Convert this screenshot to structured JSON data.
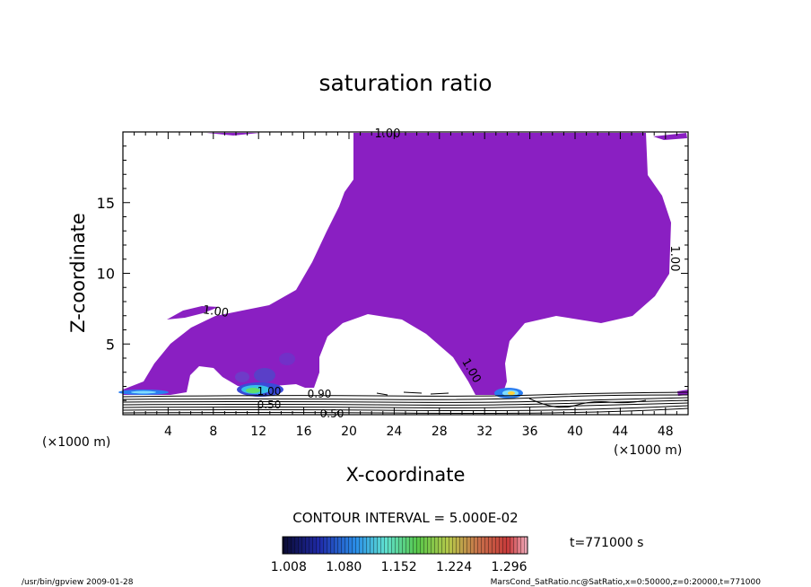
{
  "chart_data": {
    "type": "contour",
    "title": "saturation ratio",
    "xlabel": "X-coordinate",
    "ylabel": "Z-coordinate",
    "x_unit_left": "(×1000 m)",
    "x_unit_right": "(×1000 m)",
    "xlim": [
      0,
      50
    ],
    "ylim": [
      0,
      20
    ],
    "x_ticks": [
      "4",
      "8",
      "12",
      "16",
      "20",
      "24",
      "28",
      "32",
      "36",
      "40",
      "44",
      "48"
    ],
    "y_ticks": [
      "5",
      "10",
      "15"
    ],
    "contour_interval": "CONTOUR INTERVAL = 5.000E-02",
    "contour_labels": [
      "1.00",
      "1.00",
      "1.00",
      "1.00",
      "1.00",
      "0.90",
      "0.50",
      "0.50"
    ],
    "colorbar_labels": [
      "1.008",
      "1.080",
      "1.152",
      "1.224",
      "1.296"
    ],
    "colorbar_range": [
      1.0,
      1.32
    ],
    "fill_color": "#8a1fc2",
    "time_label": "t=771000 s",
    "footer_left": "/usr/bin/gpview  2009-01-28",
    "footer_right": "MarsCond_SatRatio.nc@SatRatio,x=0:50000,z=0:20000,t=771000"
  }
}
